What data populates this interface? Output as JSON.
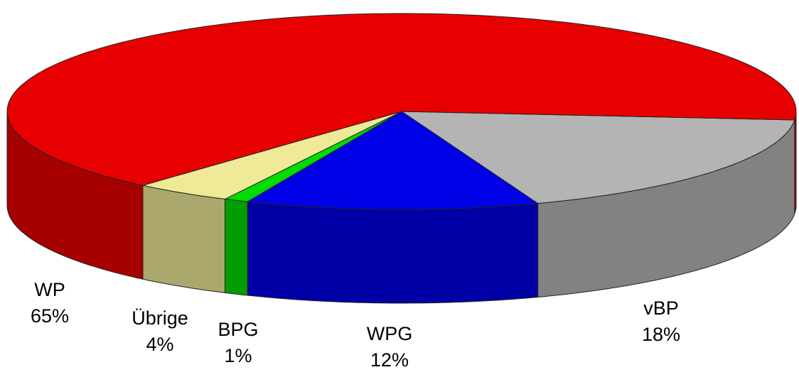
{
  "chart_data": {
    "type": "pie3d",
    "categories": [
      "vBP",
      "WPG",
      "BPG",
      "Übrige",
      "WP"
    ],
    "values": [
      18,
      12,
      1,
      4,
      65
    ],
    "value_labels": [
      "18%",
      "12%",
      "1%",
      "4%",
      "65%"
    ],
    "colors": [
      "#b4b4b4",
      "#0000e6",
      "#00dc00",
      "#eeea98",
      "#e80000"
    ]
  }
}
